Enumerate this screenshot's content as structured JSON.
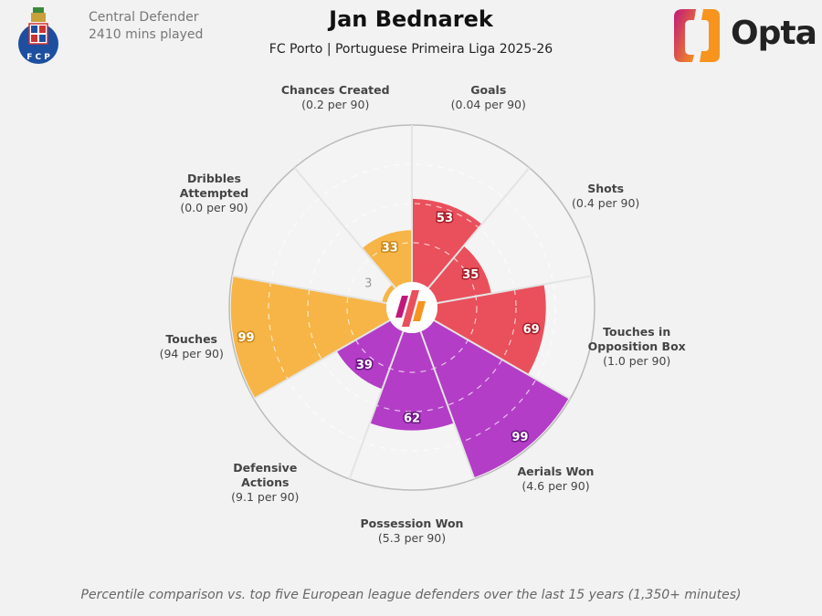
{
  "header": {
    "role": "Central Defender",
    "minutes": "2410 mins played",
    "player": "Jan Bednarek",
    "subtitle": "FC Porto | Portuguese Primeira Liga 2025-26",
    "club_crest_text": "F C P",
    "brand": "Opta"
  },
  "footer": "Percentile comparison vs. top five European league defenders over the last 15 years (1,350+ minutes)",
  "colors": {
    "attacking": "#e9505c",
    "defending": "#b33dc6",
    "possession": "#f6b546",
    "background": "#f2f2f2"
  },
  "chart_data": {
    "type": "pie",
    "subtype": "polar-area (pizza) percentile chart",
    "range": [
      0,
      100
    ],
    "gridlines": [
      25,
      50,
      75
    ],
    "categories": [
      {
        "name": "Goals",
        "per90": "(0.04 per 90)",
        "percentile": 53,
        "group": "attacking"
      },
      {
        "name": "Shots",
        "per90": "(0.4 per 90)",
        "percentile": 35,
        "group": "attacking"
      },
      {
        "name": "Touches in\nOpposition Box",
        "per90": "(1.0 per 90)",
        "percentile": 69,
        "group": "attacking"
      },
      {
        "name": "Aerials Won",
        "per90": "(4.6 per 90)",
        "percentile": 99,
        "group": "defending"
      },
      {
        "name": "Possession Won",
        "per90": "(5.3 per 90)",
        "percentile": 62,
        "group": "defending"
      },
      {
        "name": "Defensive\nActions",
        "per90": "(9.1 per 90)",
        "percentile": 39,
        "group": "defending"
      },
      {
        "name": "Touches",
        "per90": "(94 per 90)",
        "percentile": 99,
        "group": "possession"
      },
      {
        "name": "Dribbles\nAttempted",
        "per90": "(0.0 per 90)",
        "percentile": 3,
        "group": "possession"
      },
      {
        "name": "Chances Created",
        "per90": "(0.2 per 90)",
        "percentile": 33,
        "group": "possession"
      }
    ]
  }
}
